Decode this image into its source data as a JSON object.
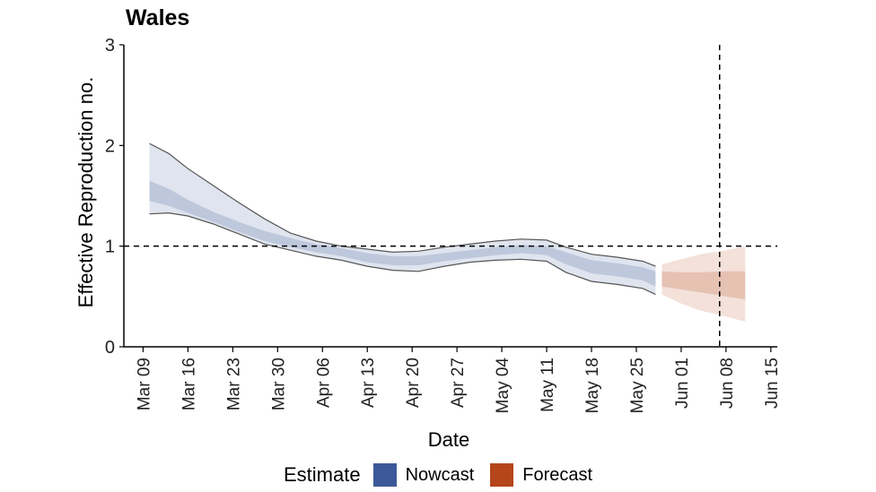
{
  "chart_data": {
    "type": "area",
    "title": "Wales",
    "xlabel": "Date",
    "ylabel": "Effective Reproduction no.",
    "ylim": [
      0,
      3
    ],
    "yticks": [
      "0",
      "1",
      "2",
      "3"
    ],
    "xlim": [
      "2020-03-06",
      "2020-06-16"
    ],
    "xticks": [
      {
        "date": "2020-03-09",
        "label": "Mar 09"
      },
      {
        "date": "2020-03-16",
        "label": "Mar 16"
      },
      {
        "date": "2020-03-23",
        "label": "Mar 23"
      },
      {
        "date": "2020-03-30",
        "label": "Mar 30"
      },
      {
        "date": "2020-04-06",
        "label": "Apr 06"
      },
      {
        "date": "2020-04-13",
        "label": "Apr 13"
      },
      {
        "date": "2020-04-20",
        "label": "Apr 20"
      },
      {
        "date": "2020-04-27",
        "label": "Apr 27"
      },
      {
        "date": "2020-05-04",
        "label": "May 04"
      },
      {
        "date": "2020-05-11",
        "label": "May 11"
      },
      {
        "date": "2020-05-18",
        "label": "May 18"
      },
      {
        "date": "2020-05-25",
        "label": "May 25"
      },
      {
        "date": "2020-06-01",
        "label": "Jun 01"
      },
      {
        "date": "2020-06-08",
        "label": "Jun 08"
      },
      {
        "date": "2020-06-15",
        "label": "Jun 15"
      }
    ],
    "reference_lines": {
      "y": 1,
      "x": "2020-06-07"
    },
    "grid": false,
    "legend": {
      "title": "Estimate",
      "position": "bottom",
      "entries": [
        {
          "label": "Nowcast",
          "color": "#3b5998"
        },
        {
          "label": "Forecast",
          "color": "#b5451b"
        }
      ]
    },
    "series": [
      {
        "name": "Nowcast",
        "color": "#3b5998",
        "x": [
          "2020-03-10",
          "2020-03-13",
          "2020-03-16",
          "2020-03-20",
          "2020-03-24",
          "2020-03-28",
          "2020-04-01",
          "2020-04-05",
          "2020-04-09",
          "2020-04-13",
          "2020-04-17",
          "2020-04-21",
          "2020-04-25",
          "2020-04-29",
          "2020-05-03",
          "2020-05-07",
          "2020-05-11",
          "2020-05-14",
          "2020-05-18",
          "2020-05-22",
          "2020-05-26",
          "2020-05-28"
        ],
        "outer_lower": [
          1.32,
          1.33,
          1.3,
          1.22,
          1.12,
          1.02,
          0.96,
          0.9,
          0.86,
          0.8,
          0.76,
          0.75,
          0.8,
          0.84,
          0.86,
          0.87,
          0.85,
          0.74,
          0.65,
          0.62,
          0.58,
          0.52
        ],
        "inner_lower": [
          1.45,
          1.4,
          1.33,
          1.24,
          1.14,
          1.05,
          0.99,
          0.94,
          0.9,
          0.84,
          0.81,
          0.81,
          0.85,
          0.88,
          0.91,
          0.93,
          0.91,
          0.82,
          0.73,
          0.7,
          0.66,
          0.6
        ],
        "median": [
          1.55,
          1.48,
          1.39,
          1.29,
          1.19,
          1.1,
          1.04,
          0.98,
          0.94,
          0.89,
          0.85,
          0.85,
          0.89,
          0.92,
          0.95,
          0.97,
          0.96,
          0.88,
          0.8,
          0.77,
          0.73,
          0.68
        ],
        "inner_upper": [
          1.65,
          1.57,
          1.46,
          1.34,
          1.24,
          1.15,
          1.08,
          1.02,
          0.98,
          0.93,
          0.9,
          0.9,
          0.93,
          0.96,
          0.99,
          1.01,
          1.0,
          0.94,
          0.86,
          0.83,
          0.79,
          0.75
        ],
        "outer_upper": [
          2.02,
          1.92,
          1.77,
          1.6,
          1.43,
          1.27,
          1.13,
          1.05,
          1.0,
          0.97,
          0.94,
          0.95,
          0.99,
          1.02,
          1.05,
          1.07,
          1.06,
          0.99,
          0.92,
          0.89,
          0.85,
          0.8
        ]
      },
      {
        "name": "Forecast",
        "color": "#b5451b",
        "x": [
          "2020-05-29",
          "2020-06-01",
          "2020-06-04",
          "2020-06-08",
          "2020-06-11"
        ],
        "outer_lower": [
          0.52,
          0.43,
          0.36,
          0.3,
          0.25
        ],
        "inner_lower": [
          0.6,
          0.57,
          0.54,
          0.5,
          0.47
        ],
        "median": [
          0.67,
          0.65,
          0.64,
          0.63,
          0.62
        ],
        "inner_upper": [
          0.75,
          0.74,
          0.74,
          0.75,
          0.75
        ],
        "outer_upper": [
          0.82,
          0.87,
          0.92,
          0.96,
          1.0
        ]
      }
    ]
  }
}
